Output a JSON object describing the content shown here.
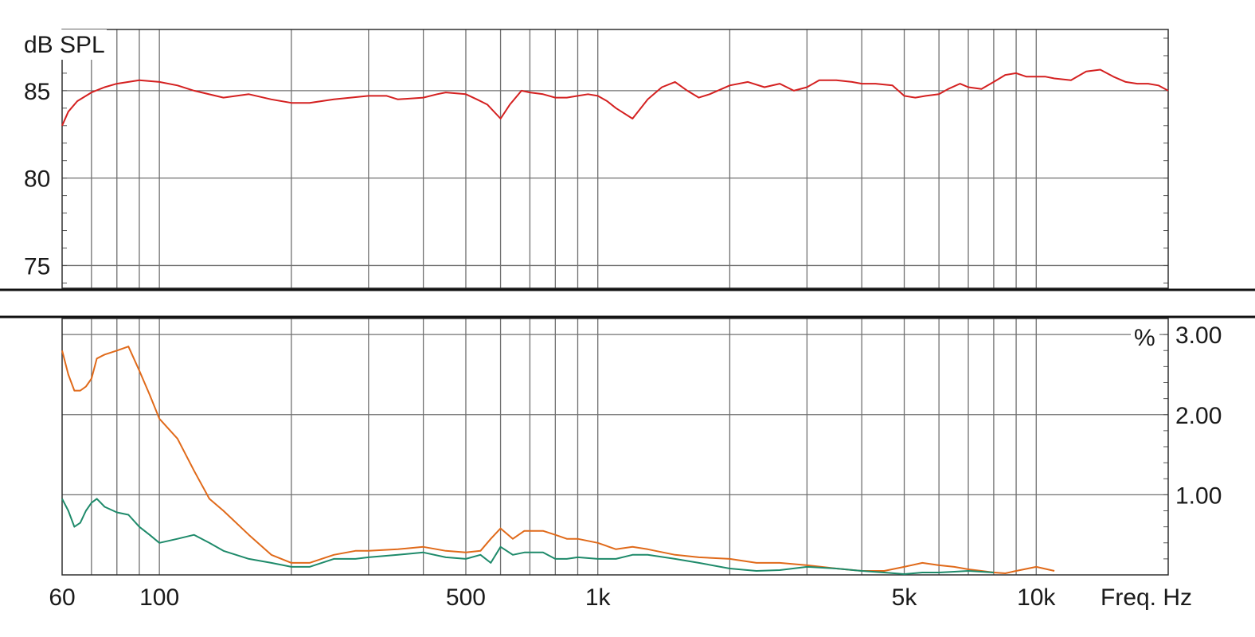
{
  "chart_data": [
    {
      "type": "line",
      "ylabel": "dB SPL",
      "y_scale": "linear",
      "x_scale": "log",
      "ylim": [
        73.7,
        88.5
      ],
      "xlim": [
        60,
        20000
      ],
      "yticks": [
        {
          "value": 75,
          "label": "75"
        },
        {
          "value": 80,
          "label": "80"
        },
        {
          "value": 85,
          "label": "85"
        }
      ],
      "grid": true,
      "series": [
        {
          "color": "#d42020",
          "x": [
            60,
            62,
            65,
            70,
            75,
            80,
            90,
            100,
            110,
            120,
            140,
            160,
            180,
            200,
            220,
            250,
            300,
            330,
            350,
            400,
            430,
            450,
            500,
            530,
            560,
            600,
            630,
            670,
            700,
            750,
            800,
            850,
            900,
            950,
            1000,
            1050,
            1100,
            1200,
            1300,
            1400,
            1500,
            1600,
            1700,
            1800,
            2000,
            2200,
            2400,
            2600,
            2800,
            3000,
            3200,
            3500,
            3800,
            4000,
            4300,
            4700,
            5000,
            5300,
            5600,
            6000,
            6300,
            6700,
            7000,
            7500,
            8000,
            8500,
            9000,
            9500,
            10000,
            10500,
            11000,
            12000,
            13000,
            14000,
            15000,
            16000,
            17000,
            18000,
            19000,
            20000
          ],
          "y": [
            83.0,
            83.8,
            84.4,
            84.9,
            85.2,
            85.4,
            85.6,
            85.5,
            85.3,
            85.0,
            84.6,
            84.8,
            84.5,
            84.3,
            84.3,
            84.5,
            84.7,
            84.7,
            84.5,
            84.6,
            84.8,
            84.9,
            84.8,
            84.5,
            84.2,
            83.4,
            84.2,
            85.0,
            84.9,
            84.8,
            84.6,
            84.6,
            84.7,
            84.8,
            84.7,
            84.4,
            84.0,
            83.4,
            84.5,
            85.2,
            85.5,
            85.0,
            84.6,
            84.8,
            85.3,
            85.5,
            85.2,
            85.4,
            85.0,
            85.2,
            85.6,
            85.6,
            85.5,
            85.4,
            85.4,
            85.3,
            84.7,
            84.6,
            84.7,
            84.8,
            85.1,
            85.4,
            85.2,
            85.1,
            85.5,
            85.9,
            86.0,
            85.8,
            85.8,
            85.8,
            85.7,
            85.6,
            86.1,
            86.2,
            85.8,
            85.5,
            85.4,
            85.4,
            85.3,
            85.0
          ]
        }
      ]
    },
    {
      "type": "line",
      "ylabel": "%",
      "xlabel": "Freq. Hz",
      "x_scale": "log",
      "ylim": [
        0,
        3.2
      ],
      "xlim": [
        60,
        20000
      ],
      "yticks": [
        {
          "value": 1.0,
          "label": "1.00"
        },
        {
          "value": 2.0,
          "label": "2.00"
        },
        {
          "value": 3.0,
          "label": "3.00"
        }
      ],
      "xticks": [
        {
          "value": 60,
          "label": "60"
        },
        {
          "value": 100,
          "label": "100"
        },
        {
          "value": 500,
          "label": "500"
        },
        {
          "value": 1000,
          "label": "1k"
        },
        {
          "value": 5000,
          "label": "5k"
        },
        {
          "value": 10000,
          "label": "10k"
        }
      ],
      "grid": true,
      "series": [
        {
          "color": "#e06a1a",
          "x": [
            60,
            62,
            64,
            66,
            68,
            70,
            72,
            75,
            80,
            85,
            90,
            95,
            100,
            110,
            120,
            130,
            140,
            160,
            180,
            200,
            220,
            250,
            280,
            300,
            350,
            400,
            450,
            500,
            540,
            570,
            600,
            640,
            680,
            750,
            800,
            850,
            900,
            1000,
            1100,
            1200,
            1300,
            1500,
            1700,
            2000,
            2300,
            2600,
            3000,
            3500,
            4000,
            4500,
            5000,
            5500,
            6000,
            6500,
            7000,
            7500,
            8000,
            8500,
            9000,
            10000,
            11000
          ],
          "x_note": "",
          "y": [
            2.8,
            2.5,
            2.3,
            2.3,
            2.35,
            2.45,
            2.7,
            2.75,
            2.8,
            2.85,
            2.55,
            2.25,
            1.95,
            1.7,
            1.3,
            0.95,
            0.8,
            0.5,
            0.25,
            0.15,
            0.15,
            0.25,
            0.3,
            0.3,
            0.32,
            0.35,
            0.3,
            0.28,
            0.3,
            0.45,
            0.58,
            0.45,
            0.55,
            0.55,
            0.5,
            0.45,
            0.45,
            0.4,
            0.32,
            0.35,
            0.32,
            0.25,
            0.22,
            0.2,
            0.15,
            0.15,
            0.12,
            0.08,
            0.05,
            0.05,
            0.1,
            0.15,
            0.12,
            0.1,
            0.07,
            0.05,
            0.03,
            0.02,
            0.05,
            0.1,
            0.05
          ]
        },
        {
          "color": "#1e8a6a",
          "x": [
            60,
            62,
            64,
            66,
            68,
            70,
            72,
            75,
            80,
            85,
            90,
            95,
            100,
            110,
            120,
            130,
            140,
            160,
            180,
            200,
            220,
            250,
            280,
            300,
            350,
            400,
            450,
            500,
            540,
            570,
            600,
            640,
            680,
            750,
            800,
            850,
            900,
            1000,
            1100,
            1200,
            1300,
            1500,
            1700,
            2000,
            2300,
            2600,
            3000,
            3500,
            4000,
            4500,
            5000,
            5500,
            6000,
            6500,
            7000,
            7500,
            8000
          ],
          "y": [
            0.95,
            0.8,
            0.6,
            0.65,
            0.8,
            0.9,
            0.95,
            0.85,
            0.78,
            0.75,
            0.6,
            0.5,
            0.4,
            0.45,
            0.5,
            0.4,
            0.3,
            0.2,
            0.15,
            0.1,
            0.1,
            0.2,
            0.2,
            0.22,
            0.25,
            0.28,
            0.22,
            0.2,
            0.25,
            0.15,
            0.35,
            0.25,
            0.28,
            0.28,
            0.2,
            0.2,
            0.22,
            0.2,
            0.2,
            0.25,
            0.25,
            0.2,
            0.15,
            0.08,
            0.05,
            0.06,
            0.1,
            0.08,
            0.05,
            0.03,
            0.01,
            0.03,
            0.03,
            0.04,
            0.05,
            0.04,
            0.03
          ]
        }
      ]
    }
  ]
}
